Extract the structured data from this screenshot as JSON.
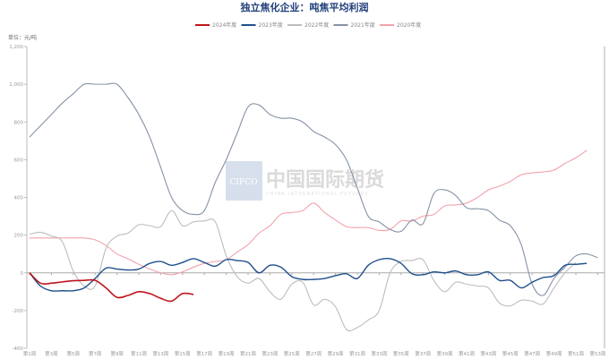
{
  "chart_data": {
    "type": "line",
    "title": "独立焦化企业：吨焦平均利润",
    "unit_label": "单位：元/吨",
    "ylim": [
      -400,
      1200
    ],
    "y_ticks": [
      {
        "value": 1200,
        "label": "1,200"
      },
      {
        "value": 1000,
        "label": "1,000"
      },
      {
        "value": 800,
        "label": "800"
      },
      {
        "value": 600,
        "label": "600"
      },
      {
        "value": 400,
        "label": "400"
      },
      {
        "value": 200,
        "label": "200"
      },
      {
        "value": 0,
        "label": "0"
      },
      {
        "value": -200,
        "label": "-200"
      },
      {
        "value": -400,
        "label": "-400"
      }
    ],
    "x_ticks": [
      "第1周",
      "第3周",
      "第5周",
      "第7周",
      "第9周",
      "第11周",
      "第13周",
      "第15周",
      "第17周",
      "第19周",
      "第21周",
      "第23周",
      "第25周",
      "第27周",
      "第29周",
      "第31周",
      "第33周",
      "第35周",
      "第37周",
      "第39周",
      "第41周",
      "第43周",
      "第45周",
      "第47周",
      "第49周",
      "第51周",
      "第53周"
    ],
    "x_tick_weeks": [
      1,
      3,
      5,
      7,
      9,
      11,
      13,
      15,
      17,
      19,
      21,
      23,
      25,
      27,
      29,
      31,
      33,
      35,
      37,
      39,
      41,
      43,
      45,
      47,
      49,
      51,
      53
    ],
    "legend_position": "top",
    "grid": false,
    "series": [
      {
        "name": "2024年度",
        "color": "#c0141c",
        "width": 1.6,
        "values": [
          0,
          -55,
          -55,
          -48,
          -42,
          -40,
          -40,
          -80,
          -130,
          -120,
          -100,
          -110,
          -135,
          -150,
          -110,
          -115
        ]
      },
      {
        "name": "2023年度",
        "color": "#1f4e8c",
        "width": 1.4,
        "values": [
          0,
          -70,
          -95,
          -95,
          -95,
          -80,
          -30,
          25,
          20,
          15,
          20,
          50,
          60,
          40,
          55,
          75,
          55,
          35,
          70,
          65,
          55,
          0,
          40,
          30,
          -20,
          -35,
          -35,
          -30,
          -15,
          -5,
          -30,
          40,
          70,
          75,
          50,
          -5,
          -10,
          5,
          0,
          10,
          -10,
          -10,
          5,
          -40,
          -40,
          -80,
          -50,
          -25,
          -15,
          40,
          45,
          50
        ]
      },
      {
        "name": "2022年度",
        "color": "#bdbdbd",
        "width": 1.1,
        "values": [
          205,
          215,
          195,
          165,
          10,
          -70,
          -70,
          130,
          195,
          210,
          255,
          250,
          245,
          330,
          250,
          270,
          275,
          270,
          90,
          -20,
          -55,
          -30,
          -100,
          -140,
          -60,
          -50,
          -170,
          -140,
          -180,
          -300,
          -290,
          -250,
          -200,
          0,
          60,
          65,
          70,
          -40,
          -100,
          -50,
          -60,
          -70,
          -80,
          -160,
          -175,
          -145,
          -150,
          -165,
          -80,
          0,
          55
        ]
      },
      {
        "name": "2021年度",
        "color": "#8592a6",
        "width": 1.1,
        "values": [
          720,
          780,
          840,
          900,
          950,
          1000,
          1000,
          1000,
          1000,
          930,
          840,
          720,
          560,
          400,
          330,
          310,
          330,
          480,
          600,
          740,
          880,
          890,
          840,
          820,
          820,
          800,
          750,
          720,
          680,
          600,
          450,
          300,
          270,
          230,
          220,
          280,
          260,
          420,
          440,
          410,
          345,
          340,
          330,
          280,
          250,
          150,
          -60,
          -120,
          -30,
          30,
          90,
          100,
          80
        ]
      },
      {
        "name": "2020年度",
        "color": "#f2a2ab",
        "width": 1.1,
        "values": [
          185,
          185,
          185,
          185,
          185,
          185,
          175,
          145,
          100,
          75,
          45,
          20,
          0,
          -10,
          5,
          30,
          50,
          60,
          70,
          110,
          150,
          210,
          250,
          310,
          320,
          330,
          370,
          320,
          280,
          245,
          240,
          240,
          225,
          230,
          275,
          275,
          300,
          310,
          355,
          360,
          370,
          400,
          440,
          460,
          485,
          520,
          530,
          535,
          545,
          580,
          610,
          650
        ]
      }
    ],
    "watermark": {
      "logo_text": "CIFCO",
      "name": "中国国际期货",
      "subtitle": "CHINA INTERNATIONAL FUTURES"
    }
  }
}
